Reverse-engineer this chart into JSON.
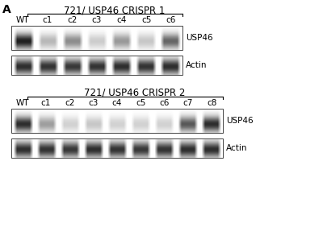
{
  "bg_color": "#ffffff",
  "panel_label": "A",
  "group1": {
    "title": "721/ USP46 CRISPR 1",
    "lanes": [
      "WT",
      "c1",
      "c2",
      "c3",
      "c4",
      "c5",
      "c6"
    ],
    "usp46_label": "USP46",
    "actin_label": "Actin",
    "usp46_intensities": [
      0.88,
      0.28,
      0.45,
      0.2,
      0.4,
      0.22,
      0.6
    ],
    "actin_intensities": [
      0.82,
      0.8,
      0.78,
      0.8,
      0.82,
      0.8,
      0.82
    ]
  },
  "group2": {
    "title": "721/ USP46 CRISPR 2",
    "lanes": [
      "WT",
      "c1",
      "c2",
      "c3",
      "c4",
      "c5",
      "c6",
      "c7",
      "c8"
    ],
    "usp46_label": "USP46",
    "actin_label": "Actin",
    "usp46_intensities": [
      0.82,
      0.38,
      0.18,
      0.22,
      0.18,
      0.18,
      0.18,
      0.65,
      0.82
    ],
    "actin_intensities": [
      0.82,
      0.8,
      0.78,
      0.82,
      0.8,
      0.78,
      0.8,
      0.82,
      0.82
    ]
  },
  "font_size_title": 8.5,
  "font_size_label": 7.5,
  "font_size_panel": 10
}
